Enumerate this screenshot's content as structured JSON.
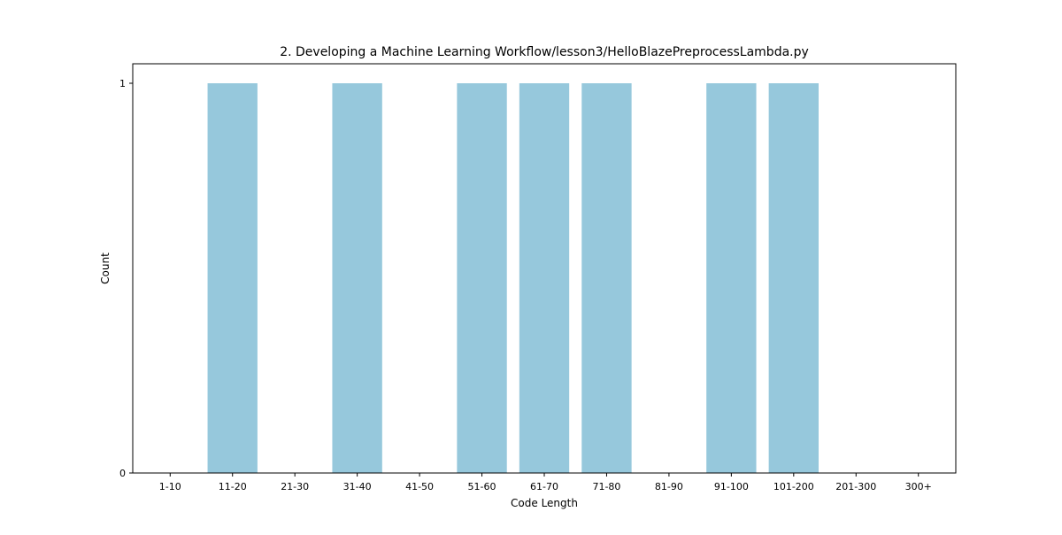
{
  "chart_data": {
    "type": "bar",
    "title": "2. Developing a Machine Learning Workflow/lesson3/HelloBlazePreprocessLambda.py",
    "xlabel": "Code Length",
    "ylabel": "Count",
    "categories": [
      "1-10",
      "11-20",
      "21-30",
      "31-40",
      "41-50",
      "51-60",
      "61-70",
      "71-80",
      "81-90",
      "91-100",
      "101-200",
      "201-300",
      "300+"
    ],
    "values": [
      0,
      1,
      0,
      1,
      0,
      1,
      1,
      1,
      0,
      1,
      1,
      0,
      0
    ],
    "yticks": [
      0,
      1
    ],
    "ylim": [
      0,
      1.05
    ],
    "bar_color": "#96c8dc",
    "grid": false,
    "legend": "none"
  }
}
